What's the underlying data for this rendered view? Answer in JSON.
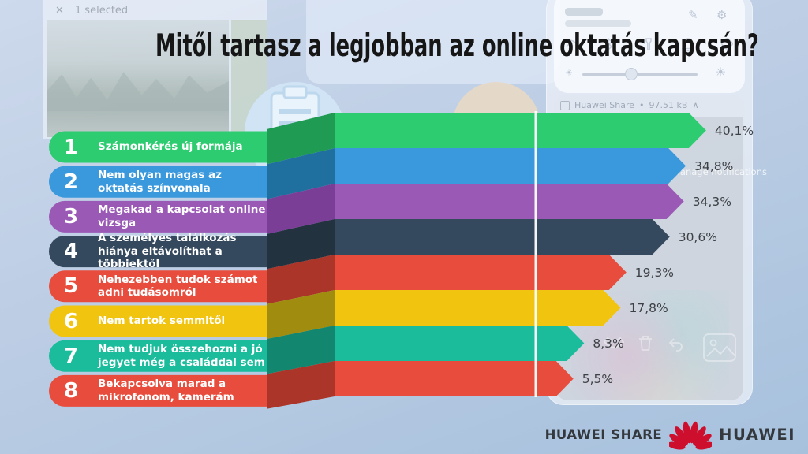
{
  "title": "Mitől tartasz a legjobban az online oktatás kapcsán?",
  "chart_data": {
    "type": "bar",
    "orientation": "horizontal",
    "unit": "%",
    "title": "Mitől tartasz a legjobban az online oktatás kapcsán?",
    "ranks": [
      "1",
      "2",
      "3",
      "4",
      "5",
      "6",
      "7",
      "8"
    ],
    "categories": [
      "Számonkérés új formája",
      "Nem olyan magas az oktatás színvonala",
      "Megakad a kapcsolat online vizsga",
      "A személyes találkozás hiánya eltávolíthat a többiektől",
      "Nehezebben tudok számot adni tudásomról",
      "Nem tartok semmitől",
      "Nem tudjuk összehozni a jó jegyet még a családdal sem",
      "Bekapcsolva marad a mikrofonom, kamerám"
    ],
    "values": [
      40.1,
      34.8,
      34.3,
      30.6,
      19.3,
      17.8,
      8.3,
      5.5
    ],
    "value_labels": [
      "40,1%",
      "34,8%",
      "34,3%",
      "30,6%",
      "19,3%",
      "17,8%",
      "8,3%",
      "5,5%"
    ],
    "colors": [
      "#2ecc71",
      "#3a99dc",
      "#9b59b6",
      "#34495e",
      "#e74c3c",
      "#f1c40f",
      "#1abc9c",
      "#e74c3c"
    ],
    "fold_colors": [
      "#1f9b53",
      "#1f6f9f",
      "#7a3e97",
      "#23323f",
      "#ab3528",
      "#a08c0e",
      "#12866e",
      "#ab3528"
    ],
    "xlim": [
      0,
      45
    ],
    "grid": false,
    "legend": false
  },
  "background": {
    "gallery": {
      "close_icon": "✕",
      "header": "1 selected"
    },
    "quick_settings": {
      "notification_app": "Huawei Share",
      "notification_size": "97.51 kB",
      "notification_separator": "•",
      "collapse_icon": "∧",
      "manage_label": "Manage notifications",
      "brightness_low_icon": "☀",
      "brightness_high_icon": "☀",
      "pencil_icon": "✎",
      "gear_icon": "⚙"
    }
  },
  "footer": {
    "share_label": "HUAWEI SHARE",
    "brand_label": "HUAWEI",
    "logo_color": "#ce0e2d",
    "text_color": "#34383d"
  }
}
